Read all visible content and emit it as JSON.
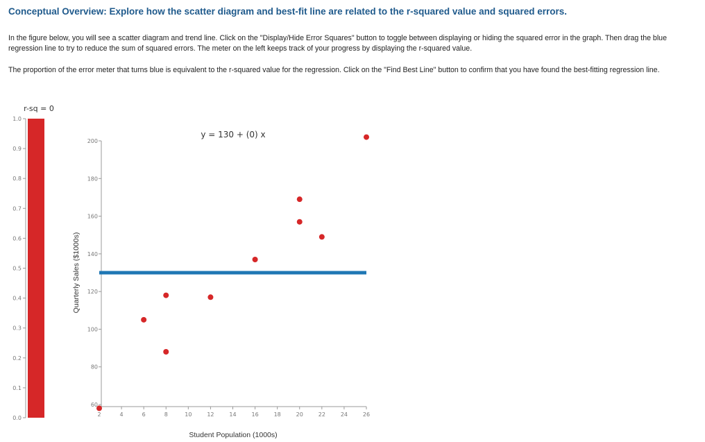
{
  "header": {
    "title": "Conceptual Overview: Explore how the scatter diagram and best-fit line are related to the r-squared value and squared errors.",
    "para1": "In the figure below, you will see a scatter diagram and trend line. Click on the \"Display/Hide Error Squares\" button to toggle between displaying or hiding the squared error in the graph. Then drag the blue regression line to try to reduce the sum of squared errors. The meter on the left keeps track of your progress by displaying the r-squared value.",
    "para2": "The proportion of the error meter that turns blue is equivalent to the r-squared value for the regression. Click on the \"Find Best Line\" button to confirm that you have found the best-fitting regression line."
  },
  "colors": {
    "meter_error": "#d62728",
    "meter_fill": "#1f77b4",
    "point": "#d62728",
    "line": "#1f77b4"
  },
  "meter": {
    "label": "r-sq = 0",
    "value": 0,
    "ylim": [
      0,
      1
    ],
    "ticks": [
      "0.0",
      "0.1",
      "0.2",
      "0.3",
      "0.4",
      "0.5",
      "0.6",
      "0.7",
      "0.8",
      "0.9",
      "1.0"
    ]
  },
  "chart_data": {
    "type": "scatter",
    "xlabel": "Student Population (1000s)",
    "ylabel": "Quarterly Sales ($1000s)",
    "xlim": [
      2,
      26
    ],
    "ylim": [
      60,
      200
    ],
    "xticks": [
      2,
      4,
      6,
      8,
      10,
      12,
      14,
      16,
      18,
      20,
      22,
      24,
      26
    ],
    "yticks": [
      60,
      80,
      100,
      120,
      140,
      160,
      180,
      200
    ],
    "points": [
      {
        "x": 2,
        "y": 58
      },
      {
        "x": 6,
        "y": 105
      },
      {
        "x": 8,
        "y": 88
      },
      {
        "x": 8,
        "y": 118
      },
      {
        "x": 12,
        "y": 117
      },
      {
        "x": 16,
        "y": 137
      },
      {
        "x": 20,
        "y": 157
      },
      {
        "x": 20,
        "y": 169
      },
      {
        "x": 22,
        "y": 149
      },
      {
        "x": 26,
        "y": 202
      }
    ],
    "regression": {
      "intercept": 130,
      "slope": 0,
      "equation": "y = 130 + (0) x"
    }
  }
}
